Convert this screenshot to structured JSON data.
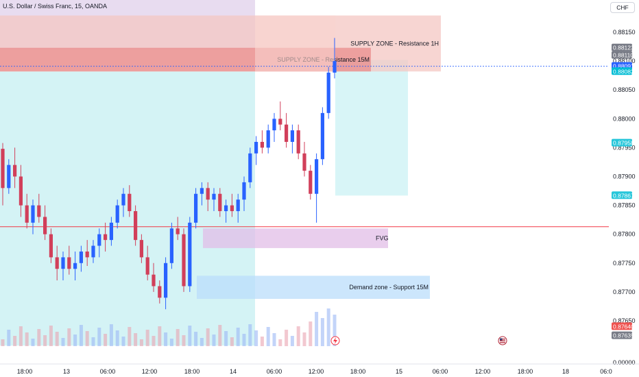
{
  "header": {
    "title": "U.S. Dollar / Swiss Franc, 15, OANDA",
    "currency": "CHF"
  },
  "chart_data": {
    "type": "candlestick",
    "title": "U.S. Dollar / Swiss Franc, 15, OANDA",
    "y_axis": {
      "ticks": [
        0.8815,
        0.881,
        0.8805,
        0.88,
        0.8795,
        0.879,
        0.8785,
        0.878,
        0.8775,
        0.877,
        0.8765
      ],
      "labels": [
        "0.88150",
        "0.88100",
        "0.88050",
        "0.88000",
        "0.87950",
        "0.87900",
        "0.87850",
        "0.87800",
        "0.87750",
        "0.87700",
        "0.87650"
      ],
      "volume_label": "0.00000",
      "range": [
        0.876,
        0.8819
      ]
    },
    "x_axis": {
      "labels": [
        "18:00",
        "13",
        "06:00",
        "12:00",
        "18:00",
        "14",
        "06:00",
        "12:00",
        "18:00",
        "15",
        "06:00",
        "12:00",
        "18:00",
        "18",
        "06:0"
      ]
    },
    "price_badges": [
      {
        "value": "0.88123",
        "color": "#787b86"
      },
      {
        "value": "0.88110",
        "color": "#787b86"
      },
      {
        "value": "0.88091",
        "color": "#2962ff"
      },
      {
        "value": "0.88082",
        "color": "#00bcd4"
      },
      {
        "value": "0.87958",
        "color": "#26c6da"
      },
      {
        "value": "0.87867",
        "color": "#26c6da"
      },
      {
        "value": "0.87640",
        "color": "#ef5350"
      },
      {
        "value": "0.87635",
        "color": "#787b86"
      }
    ],
    "zones": [
      {
        "name": "SUPPLY ZONE - Resistance 1H",
        "top": 0.88179,
        "bottom": 0.88082,
        "color": "#f4c7c3"
      },
      {
        "name": "SUPPLY ZONE - Resistance 15M",
        "top": 0.88123,
        "bottom": 0.88082,
        "color": "#e57373"
      },
      {
        "name": "FVG",
        "top": 0.8781,
        "bottom": 0.87776,
        "color": "#e1bee7"
      },
      {
        "name": "Demand zone - Support 15M",
        "top": 0.87728,
        "bottom": 0.87688,
        "color": "#bbdefb"
      }
    ],
    "levels": [
      {
        "value": 0.87813,
        "color": "#f23645"
      },
      {
        "value": 0.88091,
        "color": "#2962ff"
      }
    ],
    "candles": [
      [
        0.87948,
        0.87958,
        0.8785,
        0.8788
      ],
      [
        0.8788,
        0.8793,
        0.8787,
        0.8792
      ],
      [
        0.8792,
        0.8795,
        0.8788,
        0.879
      ],
      [
        0.879,
        0.8792,
        0.8783,
        0.8785
      ],
      [
        0.8785,
        0.8787,
        0.8781,
        0.8782
      ],
      [
        0.8782,
        0.8786,
        0.878,
        0.8785
      ],
      [
        0.8785,
        0.8787,
        0.8782,
        0.8783
      ],
      [
        0.8783,
        0.8785,
        0.8779,
        0.878
      ],
      [
        0.878,
        0.8781,
        0.8775,
        0.8776
      ],
      [
        0.8776,
        0.8778,
        0.8772,
        0.8774
      ],
      [
        0.8774,
        0.8777,
        0.8772,
        0.8776
      ],
      [
        0.8776,
        0.8778,
        0.8773,
        0.8774
      ],
      [
        0.8774,
        0.8777,
        0.8772,
        0.8775
      ],
      [
        0.8775,
        0.8778,
        0.87735,
        0.8777
      ],
      [
        0.8777,
        0.8779,
        0.87745,
        0.8776
      ],
      [
        0.8776,
        0.8779,
        0.8775,
        0.8778
      ],
      [
        0.8778,
        0.8781,
        0.8776,
        0.878
      ],
      [
        0.878,
        0.8782,
        0.8777,
        0.8779
      ],
      [
        0.8779,
        0.8783,
        0.8778,
        0.8782
      ],
      [
        0.8782,
        0.8786,
        0.8781,
        0.8785
      ],
      [
        0.8785,
        0.8788,
        0.8783,
        0.8787
      ],
      [
        0.8787,
        0.87885,
        0.8783,
        0.8784
      ],
      [
        0.8784,
        0.8785,
        0.8778,
        0.8779
      ],
      [
        0.8779,
        0.878,
        0.8775,
        0.8776
      ],
      [
        0.8776,
        0.8778,
        0.8772,
        0.8773
      ],
      [
        0.8773,
        0.8775,
        0.877,
        0.8771
      ],
      [
        0.8771,
        0.8772,
        0.8768,
        0.8769
      ],
      [
        0.8769,
        0.8776,
        0.8767,
        0.8775
      ],
      [
        0.8775,
        0.8782,
        0.8774,
        0.8781
      ],
      [
        0.8781,
        0.8783,
        0.8779,
        0.878
      ],
      [
        0.878,
        0.8781,
        0.877,
        0.8771
      ],
      [
        0.8771,
        0.8783,
        0.877,
        0.8782
      ],
      [
        0.8782,
        0.8788,
        0.8781,
        0.8787
      ],
      [
        0.8787,
        0.8789,
        0.8785,
        0.8788
      ],
      [
        0.8788,
        0.8789,
        0.8784,
        0.8786
      ],
      [
        0.8786,
        0.8788,
        0.8784,
        0.8787
      ],
      [
        0.8787,
        0.8788,
        0.8783,
        0.8784
      ],
      [
        0.8784,
        0.8786,
        0.8782,
        0.8785
      ],
      [
        0.8785,
        0.8787,
        0.8783,
        0.8784
      ],
      [
        0.8784,
        0.8787,
        0.8782,
        0.8786
      ],
      [
        0.8786,
        0.879,
        0.8784,
        0.8789
      ],
      [
        0.8789,
        0.8795,
        0.8788,
        0.8794
      ],
      [
        0.8794,
        0.8797,
        0.8792,
        0.8796
      ],
      [
        0.8796,
        0.8798,
        0.8794,
        0.8795
      ],
      [
        0.8795,
        0.8799,
        0.8794,
        0.8798
      ],
      [
        0.8798,
        0.8801,
        0.8796,
        0.88
      ],
      [
        0.88,
        0.8803,
        0.8798,
        0.8799
      ],
      [
        0.8799,
        0.8801,
        0.8795,
        0.8796
      ],
      [
        0.8796,
        0.8799,
        0.8794,
        0.8798
      ],
      [
        0.8798,
        0.8799,
        0.8793,
        0.8794
      ],
      [
        0.8794,
        0.8796,
        0.879,
        0.8791
      ],
      [
        0.8791,
        0.8792,
        0.8786,
        0.8787
      ],
      [
        0.8787,
        0.8794,
        0.8782,
        0.8793
      ],
      [
        0.8793,
        0.8802,
        0.8792,
        0.8801
      ],
      [
        0.8801,
        0.8809,
        0.88,
        0.8808
      ],
      [
        0.8808,
        0.8814,
        0.8807,
        0.881
      ]
    ]
  }
}
